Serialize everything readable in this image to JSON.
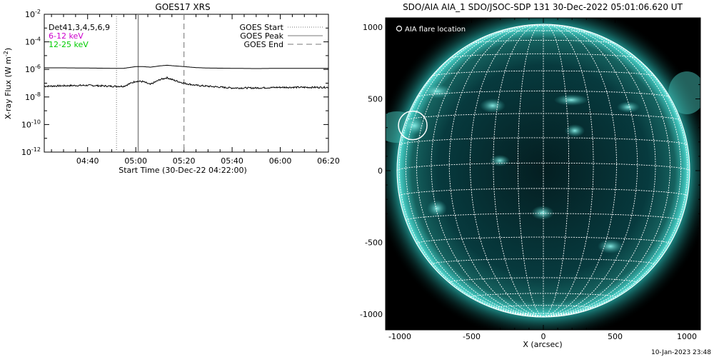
{
  "chart_data": [
    {
      "type": "line",
      "title": "GOES17 XRS",
      "xlabel": "Start Time (30-Dec-22 04:22:00)",
      "ylabel": "X-ray Flux (W m",
      "ylabel_sup": "-2",
      "ylabel_close": ")",
      "y_scale": "log",
      "ylim": [
        1e-12,
        0.01
      ],
      "xlim": [
        "04:22",
        "06:20"
      ],
      "x_ticks": [
        "04:40",
        "05:00",
        "05:20",
        "05:40",
        "06:00",
        "06:20"
      ],
      "y_ticks": [
        {
          "base": "10",
          "exp": "-2"
        },
        {
          "base": "10",
          "exp": "-4"
        },
        {
          "base": "10",
          "exp": "-6"
        },
        {
          "base": "10",
          "exp": "-8"
        },
        {
          "base": "10",
          "exp": "-10"
        },
        {
          "base": "10",
          "exp": "-12"
        }
      ],
      "channel_labels": [
        {
          "text": "Det41,3,4,5,6,9",
          "color": "#000000"
        },
        {
          "text": "6-12 keV",
          "color": "#cc00cc"
        },
        {
          "text": "12-25 keV",
          "color": "#00cc00"
        }
      ],
      "legend": [
        {
          "label": "GOES Start",
          "style": "dotted"
        },
        {
          "label": "GOES Peak",
          "style": "solid"
        },
        {
          "label": "GOES End",
          "style": "dashed"
        }
      ],
      "legend_position": "top-right",
      "event_lines": {
        "start": "04:52",
        "peak": "05:01",
        "end": "05:20"
      },
      "series": [
        {
          "channel": "long",
          "x": [
            "04:22",
            "04:30",
            "04:40",
            "04:50",
            "04:55",
            "05:00",
            "05:03",
            "05:06",
            "05:10",
            "05:13",
            "05:16",
            "05:20",
            "05:25",
            "05:30",
            "05:40",
            "05:50",
            "06:00",
            "06:10",
            "06:20"
          ],
          "values": [
            1.3e-06,
            1.3e-06,
            1.25e-06,
            1.2e-06,
            1.2e-06,
            1.6e-06,
            1.6e-06,
            1.45e-06,
            1.8e-06,
            2e-06,
            1.8e-06,
            1.6e-06,
            1.35e-06,
            1.25e-06,
            1.2e-06,
            1.15e-06,
            1.2e-06,
            1.2e-06,
            1.2e-06
          ]
        },
        {
          "channel": "short",
          "x": [
            "04:22",
            "04:30",
            "04:40",
            "04:50",
            "04:55",
            "05:00",
            "05:03",
            "05:06",
            "05:10",
            "05:13",
            "05:16",
            "05:20",
            "05:25",
            "05:30",
            "05:40",
            "05:50",
            "06:00",
            "06:10",
            "06:20"
          ],
          "values": [
            6e-08,
            6.5e-08,
            7e-08,
            6e-08,
            6e-08,
            1.4e-07,
            1.3e-07,
            8e-08,
            1.8e-07,
            2.5e-07,
            1.6e-07,
            1e-07,
            7e-08,
            6e-08,
            4.5e-08,
            4.5e-08,
            5e-08,
            5e-08,
            5e-08
          ]
        }
      ]
    },
    {
      "type": "heatmap",
      "title": "SDO/AIA AIA_1 SDO/JSOC-SDP 131 30-Dec-2022 05:01:06.620 UT",
      "xlabel": "X (arcsec)",
      "ylabel": "",
      "xlim": [
        -1100,
        1100
      ],
      "ylim": [
        -1100,
        1100
      ],
      "x_ticks": [
        -1000,
        -500,
        0,
        500,
        1000
      ],
      "y_ticks": [
        1000,
        500,
        0,
        -500,
        -1000
      ],
      "grid": "heliographic",
      "legend": [
        {
          "label": "AIA flare location",
          "symbol": "circle"
        }
      ],
      "legend_position": "top-left",
      "flare_location": {
        "x": -910,
        "y": 315
      },
      "colors": {
        "colormap": "teal",
        "disk": "#063a3e",
        "limb": "#4de0d8"
      }
    }
  ],
  "footer": {
    "timestamp": "10-Jan-2023 23:48"
  }
}
